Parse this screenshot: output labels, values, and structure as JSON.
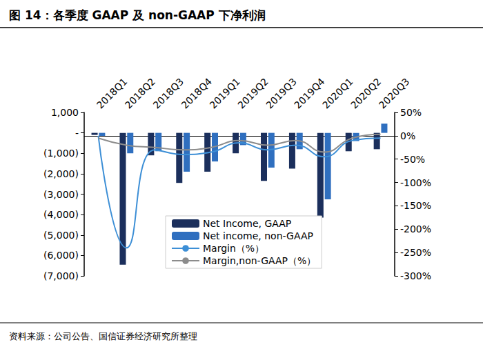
{
  "chart_data": {
    "type": "bar",
    "title": "图 14：各季度 GAAP 及 non-GAAP 下净利润",
    "subtitle": "资料来源：公司公告、国信证券经济研究所整理",
    "categories": [
      "2018Q1",
      "2018Q2",
      "2018Q3",
      "2018Q4",
      "2019Q1",
      "2019Q2",
      "2019Q3",
      "2019Q4",
      "2020Q1",
      "2020Q2",
      "2020Q3"
    ],
    "series": [
      {
        "name": "Net Income, GAAP",
        "type": "bar",
        "color": "#1b2f5c",
        "values": [
          -100,
          -6450,
          -1100,
          -2450,
          -1900,
          -1000,
          -2350,
          -1750,
          -4150,
          -900,
          -800
        ]
      },
      {
        "name": "Net income, non-GAAP",
        "type": "bar",
        "color": "#2f6fbf",
        "values": [
          -150,
          -1000,
          -900,
          -1900,
          -1400,
          -600,
          -1700,
          -800,
          -3250,
          -400,
          450
        ]
      },
      {
        "name": "Margin（%）",
        "type": "line",
        "axis": "y2",
        "color": "#3d8fd6",
        "marker": "none",
        "line_style": "solid",
        "values": [
          0,
          -240,
          -30,
          -40,
          -35,
          -15,
          -30,
          -20,
          -45,
          -10,
          -5
        ]
      },
      {
        "name": "Margin,non-GAAP（%）",
        "type": "line",
        "axis": "y2",
        "color": "#8c8c8c",
        "marker": "none",
        "line_style": "solid",
        "values": [
          -5,
          -20,
          -25,
          -30,
          -25,
          -10,
          -20,
          -10,
          -35,
          -5,
          3
        ]
      }
    ],
    "ylim": [
      -7000,
      1000
    ],
    "yticks": [
      {
        "value": -7000,
        "label": "(7,000)"
      },
      {
        "value": -6000,
        "label": "(6,000)"
      },
      {
        "value": -5000,
        "label": "(5,000)"
      },
      {
        "value": -4000,
        "label": "(4,000)"
      },
      {
        "value": -3000,
        "label": "(3,000)"
      },
      {
        "value": -2000,
        "label": "(2,000)"
      },
      {
        "value": -1000,
        "label": "(1,000)"
      },
      {
        "value": 0,
        "label": "-"
      },
      {
        "value": 1000,
        "label": "1,000"
      }
    ],
    "y2lim": [
      -300,
      50
    ],
    "y2ticks": [
      {
        "value": -300,
        "label": "-300%"
      },
      {
        "value": -250,
        "label": "-250%"
      },
      {
        "value": -200,
        "label": "-200%"
      },
      {
        "value": -150,
        "label": "-150%"
      },
      {
        "value": -100,
        "label": "-100%"
      },
      {
        "value": -50,
        "label": "-50%"
      },
      {
        "value": 0,
        "label": "0%"
      },
      {
        "value": 50,
        "label": "50%"
      }
    ],
    "grid": false,
    "legend": "bottom"
  }
}
